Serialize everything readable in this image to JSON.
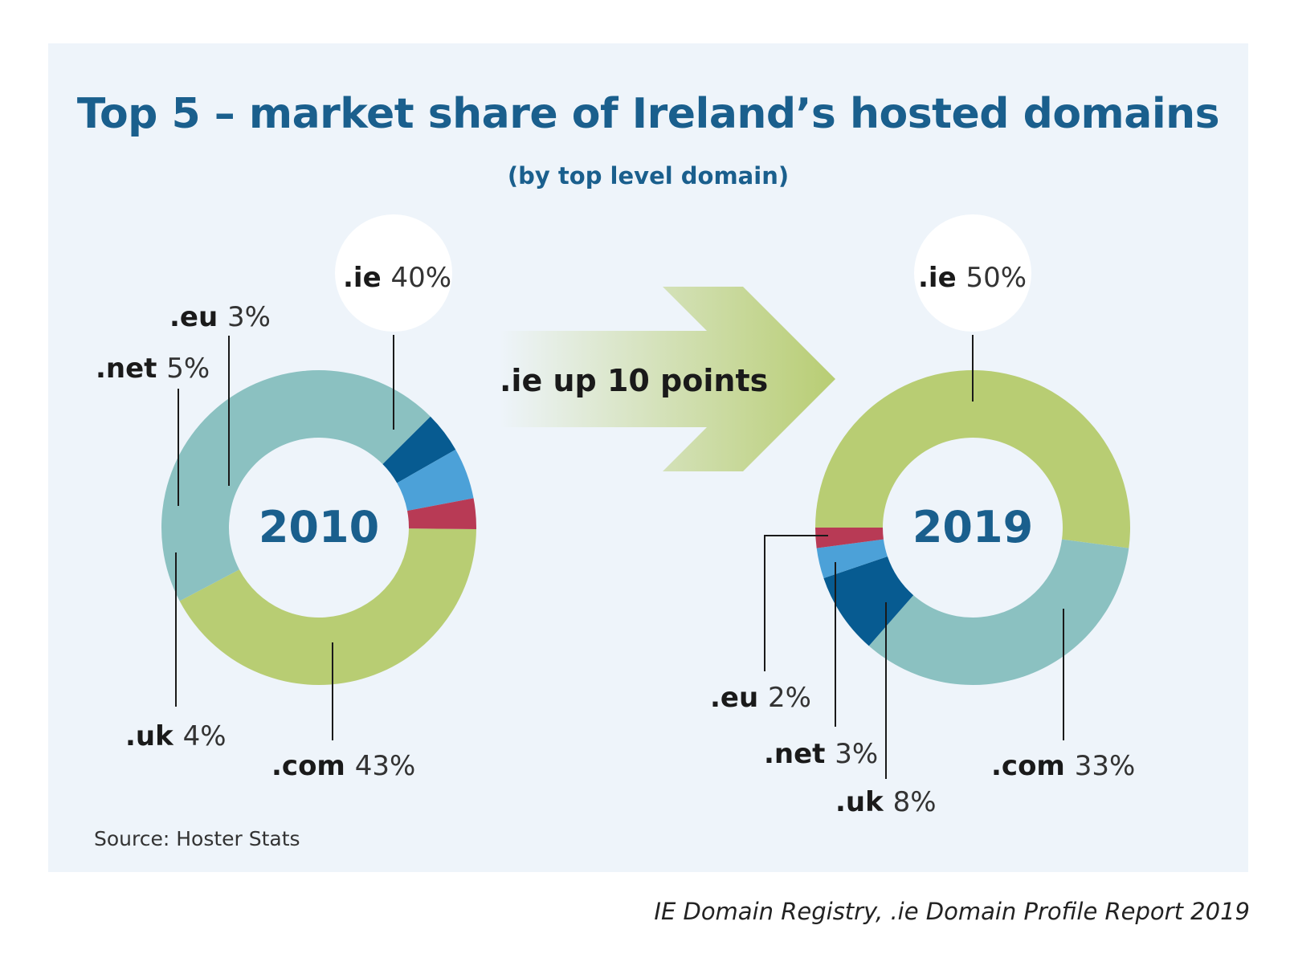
{
  "title": "Top 5 – market share of Ireland’s hosted domains",
  "subtitle": "(by top level domain)",
  "arrow_label": ".ie up 10 points",
  "source": "Source: Hoster Stats",
  "credit": "IE Domain Registry, .ie Domain Profile Report 2019",
  "colors": {
    ".ie": "#b8cd73",
    ".com": "#8bc1c1",
    ".uk": "#075b91",
    ".net": "#4ca1d8",
    ".eu": "#b83a55",
    "center_label": "#1a5f8d",
    "panel": "#eef4fa"
  },
  "chart_data": [
    {
      "type": "pie",
      "center_label": "2010",
      "categories": [
        ".ie",
        ".com",
        ".uk",
        ".net",
        ".eu"
      ],
      "values": [
        40,
        43,
        4,
        5,
        3
      ],
      "labels": [
        {
          "name": ".ie",
          "value": "40%"
        },
        {
          "name": ".com",
          "value": "43%"
        },
        {
          "name": ".uk",
          "value": "4%"
        },
        {
          "name": ".net",
          "value": "5%"
        },
        {
          "name": ".eu",
          "value": "3%"
        }
      ]
    },
    {
      "type": "pie",
      "center_label": "2019",
      "categories": [
        ".ie",
        ".com",
        ".uk",
        ".net",
        ".eu"
      ],
      "values": [
        50,
        33,
        8,
        3,
        2
      ],
      "labels": [
        {
          "name": ".ie",
          "value": "50%"
        },
        {
          "name": ".com",
          "value": "33%"
        },
        {
          "name": ".uk",
          "value": "8%"
        },
        {
          "name": ".net",
          "value": "3%"
        },
        {
          "name": ".eu",
          "value": "2%"
        }
      ]
    }
  ]
}
